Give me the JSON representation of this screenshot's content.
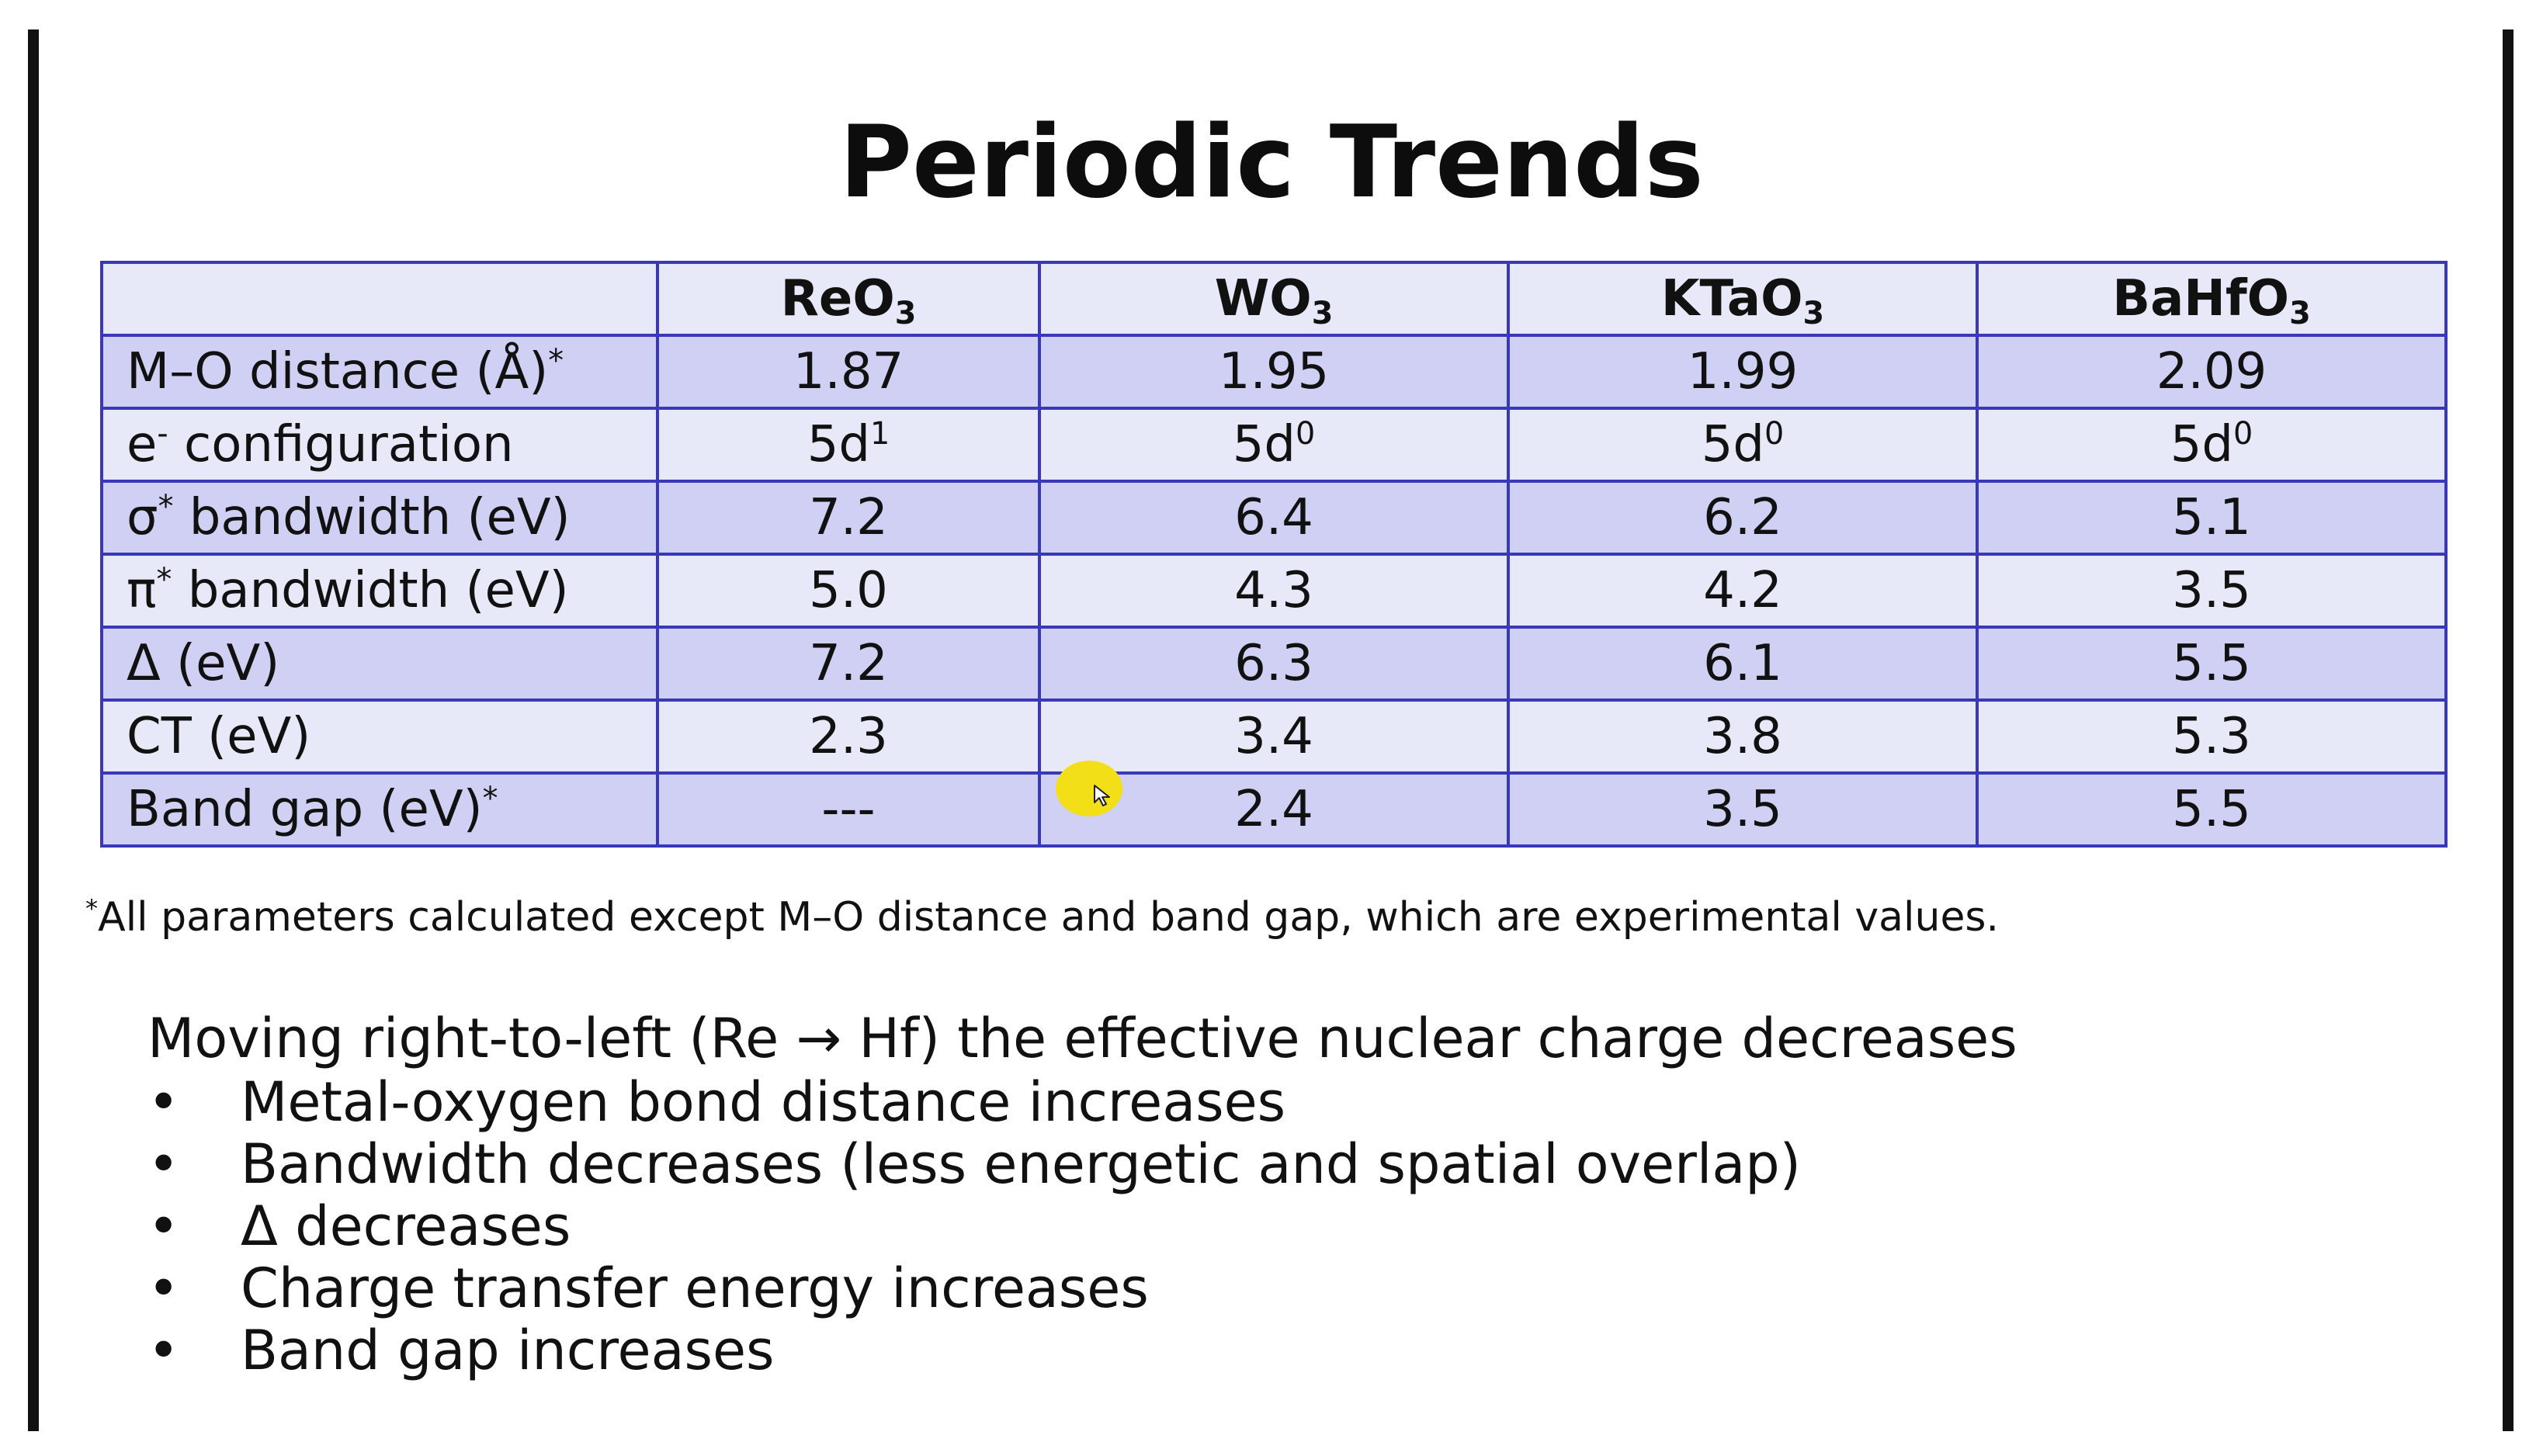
{
  "slide": {
    "title": "Periodic Trends",
    "table": {
      "header": {
        "blank": "",
        "columns": [
          {
            "base": "ReO",
            "sub": "3"
          },
          {
            "base": "WO",
            "sub": "3"
          },
          {
            "base": "KTaO",
            "sub": "3"
          },
          {
            "base": "BaHfO",
            "sub": "3"
          }
        ]
      },
      "rows": [
        {
          "label": "M–O distance (Å)",
          "label_mark": "*",
          "values": [
            "1.87",
            "1.95",
            "1.99",
            "2.09"
          ]
        },
        {
          "label_pre": "e",
          "label_sup": "-",
          "label_post": " configuration",
          "values": [
            {
              "base": "5d",
              "sup": "1"
            },
            {
              "base": "5d",
              "sup": "0"
            },
            {
              "base": "5d",
              "sup": "0"
            },
            {
              "base": "5d",
              "sup": "0"
            }
          ]
        },
        {
          "label_pre": "σ",
          "label_sup": "*",
          "label_post": " bandwidth (eV)",
          "values": [
            "7.2",
            "6.4",
            "6.2",
            "5.1"
          ]
        },
        {
          "label_pre": "π",
          "label_sup": "*",
          "label_post": " bandwidth (eV)",
          "values": [
            "5.0",
            "4.3",
            "4.2",
            "3.5"
          ]
        },
        {
          "label": "Δ (eV)",
          "values": [
            "7.2",
            "6.3",
            "6.1",
            "5.5"
          ]
        },
        {
          "label": "CT (eV)",
          "values": [
            "2.3",
            "3.4",
            "3.8",
            "5.3"
          ]
        },
        {
          "label": "Band gap (eV)",
          "label_mark": "*",
          "values": [
            "---",
            "2.4",
            "3.5",
            "5.5"
          ]
        }
      ]
    },
    "footnote": {
      "mark": "*",
      "text": "All parameters calculated except M–O distance and band gap, which are experimental values."
    },
    "lead": "Moving right-to-left (Re → Hf) the effective nuclear charge decreases",
    "bullet_symbol": "•",
    "bullets": [
      "Metal-oxygen bond distance increases",
      "Bandwidth decreases (less energetic and spatial overlap)",
      "Δ decreases",
      "Charge transfer energy increases",
      "Band gap increases"
    ],
    "cursor": {
      "highlight_color": "#f3df18"
    }
  }
}
